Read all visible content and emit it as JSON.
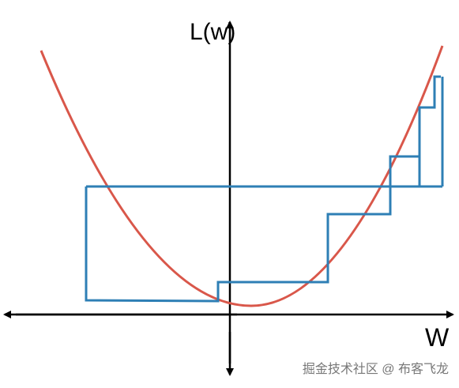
{
  "axis_labels": {
    "y": "L(w)",
    "x": "W"
  },
  "watermark": "掘金技术社区 @ 布客飞龙"
}
